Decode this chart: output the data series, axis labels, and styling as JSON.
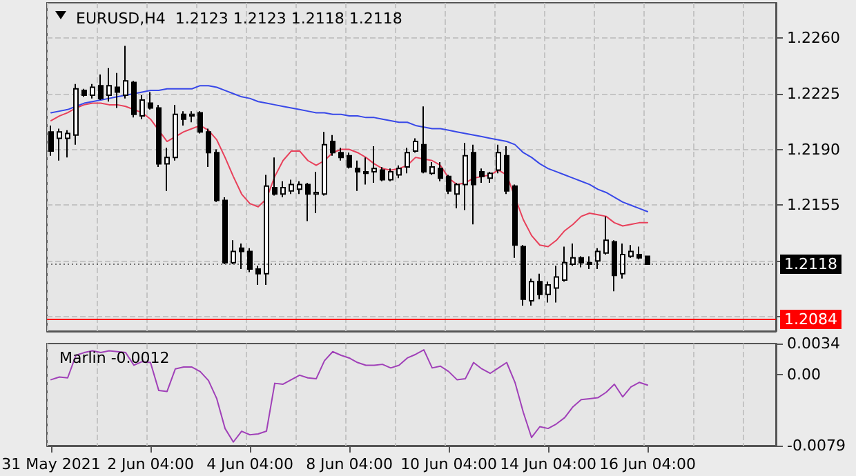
{
  "chart_data": [
    {
      "type": "candlestick",
      "title": "EURUSD,H4  1.2123 1.2123 1.2118 1.2118",
      "tick_labels": "y",
      "grid": true,
      "marker": "none",
      "categories": [
        null,
        null,
        null,
        null,
        null,
        null,
        null,
        null,
        null,
        null,
        null,
        null,
        null,
        null,
        null,
        null,
        null,
        null,
        null,
        null,
        null,
        null,
        null,
        null,
        null,
        null,
        null,
        null,
        null,
        null,
        null,
        null,
        null,
        null,
        null,
        null,
        null,
        null,
        null,
        null,
        null,
        null,
        null,
        null,
        null,
        null,
        null,
        null,
        null,
        null,
        null,
        null,
        null,
        null,
        null,
        null,
        null,
        null,
        null,
        null,
        null,
        null,
        null,
        null,
        null,
        null,
        null,
        null,
        null,
        null,
        null,
        null,
        null,
        null,
        null,
        null,
        null,
        null,
        null,
        null,
        null,
        null,
        null,
        null,
        null,
        null,
        null,
        null
      ],
      "ylim": [
        1.2076,
        1.2282
      ],
      "yticks": [
        {
          "value": 1.2085,
          "label": null
        },
        {
          "value": 1.212,
          "label": null
        },
        {
          "value": 1.2155,
          "label": "1.2155"
        },
        {
          "value": 1.219,
          "label": "1.2190"
        },
        {
          "value": 1.2225,
          "label": "1.2225"
        },
        {
          "value": 1.226,
          "label": "1.2260"
        }
      ],
      "ref_lines": [
        {
          "axis": "y",
          "value": 1.2084,
          "label": "1.2084",
          "color": "#ff0000",
          "line_style": "solid"
        },
        {
          "axis": "y",
          "value": 1.2118,
          "label": "1.2118",
          "color": "#000000",
          "line_style": "dotted"
        }
      ],
      "series": [
        {
          "type": "candlestick",
          "color": "#000000",
          "ohlc": [
            [
              1.2201,
              1.2205,
              1.2186,
              1.2189
            ],
            [
              1.2197,
              1.2203,
              1.2183,
              1.2201
            ],
            [
              1.2197,
              1.2202,
              1.2185,
              1.22
            ],
            [
              1.2199,
              1.2231,
              1.2193,
              1.2228
            ],
            [
              1.2227,
              1.2228,
              1.2223,
              1.2224
            ],
            [
              1.2224,
              1.2231,
              1.2222,
              1.2229
            ],
            [
              1.223,
              1.2237,
              1.2221,
              1.2222
            ],
            [
              1.2224,
              1.2241,
              1.222,
              1.223
            ],
            [
              1.2229,
              1.2238,
              1.2216,
              1.2226
            ],
            [
              1.2224,
              1.2255,
              1.2222,
              1.2233
            ],
            [
              1.2232,
              1.2233,
              1.221,
              1.2212
            ],
            [
              1.2211,
              1.2224,
              1.2209,
              1.2221
            ],
            [
              1.2219,
              1.2226,
              1.2215,
              1.2216
            ],
            [
              1.2216,
              1.2218,
              1.2179,
              1.2181
            ],
            [
              1.2181,
              1.2191,
              1.2164,
              1.2185
            ],
            [
              1.2185,
              1.2218,
              1.2183,
              1.2212
            ],
            [
              1.2212,
              1.2214,
              1.2205,
              1.2209
            ],
            [
              1.2211,
              1.2214,
              1.2207,
              1.2212
            ],
            [
              1.2213,
              1.2214,
              1.22,
              1.2201
            ],
            [
              1.2201,
              1.2203,
              1.2179,
              1.2188
            ],
            [
              1.2188,
              1.219,
              1.2157,
              1.2158
            ],
            [
              1.2158,
              1.216,
              1.2118,
              1.2119
            ],
            [
              1.2119,
              1.2133,
              1.2118,
              1.2126
            ],
            [
              1.2128,
              1.2131,
              1.2115,
              1.2126
            ],
            [
              1.2126,
              1.2128,
              1.2113,
              1.2115
            ],
            [
              1.2115,
              1.2117,
              1.2105,
              1.2112
            ],
            [
              1.2112,
              1.2174,
              1.2105,
              1.2167
            ],
            [
              1.2166,
              1.2185,
              1.2161,
              1.2162
            ],
            [
              1.2162,
              1.217,
              1.216,
              1.2166
            ],
            [
              1.2164,
              1.2171,
              1.2162,
              1.2168
            ],
            [
              1.2165,
              1.217,
              1.2162,
              1.2168
            ],
            [
              1.2168,
              1.2169,
              1.2145,
              1.2162
            ],
            [
              1.2162,
              1.2176,
              1.215,
              1.2163
            ],
            [
              1.2162,
              1.2201,
              1.2161,
              1.2193
            ],
            [
              1.2195,
              1.2199,
              1.2186,
              1.2188
            ],
            [
              1.2188,
              1.2191,
              1.2183,
              1.2185
            ],
            [
              1.2186,
              1.2188,
              1.2178,
              1.2179
            ],
            [
              1.2178,
              1.2183,
              1.2164,
              1.2176
            ],
            [
              1.2176,
              1.2185,
              1.2168,
              1.2175
            ],
            [
              1.2176,
              1.2192,
              1.2169,
              1.2178
            ],
            [
              1.2177,
              1.2179,
              1.217,
              1.2171
            ],
            [
              1.2171,
              1.2178,
              1.217,
              1.2176
            ],
            [
              1.2174,
              1.218,
              1.2172,
              1.2178
            ],
            [
              1.2179,
              1.2191,
              1.2175,
              1.2188
            ],
            [
              1.2189,
              1.2197,
              1.2188,
              1.2195
            ],
            [
              1.2193,
              1.2217,
              1.2175,
              1.2176
            ],
            [
              1.2175,
              1.2182,
              1.2174,
              1.2179
            ],
            [
              1.2178,
              1.2182,
              1.217,
              1.2172
            ],
            [
              1.2173,
              1.2174,
              1.2162,
              1.2164
            ],
            [
              1.2162,
              1.2169,
              1.2153,
              1.2168
            ],
            [
              1.2168,
              1.2194,
              1.2152,
              1.2186
            ],
            [
              1.2188,
              1.2193,
              1.2143,
              1.2168
            ],
            [
              1.2176,
              1.2178,
              1.2169,
              1.2173
            ],
            [
              1.2172,
              1.2176,
              1.2169,
              1.2175
            ],
            [
              1.2177,
              1.2193,
              1.2175,
              1.2188
            ],
            [
              1.2186,
              1.2192,
              1.2162,
              1.2164
            ],
            [
              1.2167,
              1.2168,
              1.2122,
              1.213
            ],
            [
              1.2129,
              1.213,
              1.2092,
              1.2096
            ],
            [
              1.2095,
              1.2109,
              1.2092,
              1.2107
            ],
            [
              1.2107,
              1.2112,
              1.2096,
              1.2099
            ],
            [
              1.2099,
              1.2107,
              1.2094,
              1.2105
            ],
            [
              1.2103,
              1.2117,
              1.2094,
              1.211
            ],
            [
              1.2108,
              1.2129,
              1.2107,
              1.2119
            ],
            [
              1.2118,
              1.2131,
              1.2117,
              1.2122
            ],
            [
              1.2122,
              1.2123,
              1.2116,
              1.2119
            ],
            [
              1.2119,
              1.2123,
              1.2115,
              1.2118
            ],
            [
              1.212,
              1.2128,
              1.2115,
              1.2126
            ],
            [
              1.2125,
              1.2148,
              1.2124,
              1.2133
            ],
            [
              1.2132,
              1.2133,
              1.2101,
              1.2111
            ],
            [
              1.2112,
              1.2131,
              1.2109,
              1.2124
            ],
            [
              1.2123,
              1.213,
              1.2122,
              1.2126
            ],
            [
              1.2124,
              1.2129,
              1.2121,
              1.2122
            ],
            [
              1.2123,
              1.2123,
              1.2118,
              1.2118
            ],
            null,
            null,
            null,
            null,
            null,
            null,
            null,
            null,
            null,
            null,
            null,
            null,
            null,
            null,
            null
          ]
        },
        {
          "type": "line",
          "color": "#e8405a",
          "values": [
            1.2208,
            1.2211,
            1.2213,
            1.2216,
            1.2218,
            1.2219,
            1.2219,
            1.2218,
            1.2218,
            1.2217,
            1.2215,
            1.2213,
            1.2209,
            1.2202,
            1.2195,
            1.2198,
            1.2201,
            1.2203,
            1.2205,
            1.2202,
            1.2196,
            1.2185,
            1.2173,
            1.2162,
            1.2156,
            1.2154,
            1.2159,
            1.2173,
            1.2183,
            1.2189,
            1.2189,
            1.2183,
            1.218,
            1.2183,
            1.2188,
            1.219,
            1.219,
            1.2188,
            1.2185,
            1.2181,
            1.2178,
            1.2177,
            1.2178,
            1.218,
            1.2185,
            1.2184,
            1.2183,
            1.218,
            1.2172,
            1.2168,
            1.2169,
            1.2172,
            1.2173,
            1.2174,
            1.2177,
            1.2174,
            null,
            1.2146,
            1.2136,
            1.213,
            1.2129,
            1.2133,
            1.2139,
            1.2143,
            1.2148,
            1.215,
            1.2149,
            1.2148,
            1.2144,
            1.2142,
            1.2143,
            1.2144,
            1.2144,
            null,
            null,
            null,
            null,
            null,
            null,
            null,
            null,
            null,
            null,
            null,
            null,
            null,
            null,
            null
          ]
        },
        {
          "type": "line",
          "color": "#3848e8",
          "values": [
            1.2213,
            1.2214,
            1.2215,
            1.2217,
            1.2219,
            1.222,
            1.2221,
            1.2222,
            1.2223,
            1.2224,
            1.2225,
            1.2226,
            1.2227,
            1.2227,
            1.2228,
            1.2228,
            1.2228,
            1.2228,
            1.223,
            1.223,
            1.2229,
            1.2227,
            1.2225,
            1.2223,
            1.2222,
            1.222,
            1.2219,
            1.2218,
            1.2217,
            1.2216,
            1.2215,
            1.2214,
            1.2213,
            1.2213,
            1.2212,
            1.2212,
            1.2211,
            1.2211,
            1.221,
            1.221,
            1.2209,
            1.2208,
            1.2207,
            1.2207,
            1.2205,
            1.2204,
            1.2203,
            1.2203,
            1.2202,
            1.2201,
            1.22,
            1.2199,
            1.2198,
            1.2197,
            1.2196,
            1.2195,
            1.2193,
            1.2188,
            1.2185,
            1.2181,
            1.2178,
            1.2176,
            1.2174,
            1.2172,
            1.217,
            1.2168,
            1.2165,
            1.2163,
            1.216,
            1.2157,
            1.2155,
            1.2153,
            1.2151,
            null,
            null,
            null,
            null,
            null,
            null,
            null,
            null,
            null,
            null,
            null,
            null,
            null,
            null,
            null
          ]
        }
      ]
    },
    {
      "type": "line",
      "title": "Marlin -0.0012",
      "grid": "x",
      "marker": "none",
      "categories": [
        "31 May 2021",
        null,
        null,
        null,
        null,
        null,
        null,
        null,
        null,
        null,
        null,
        null,
        "2 Jun 04:00",
        null,
        null,
        null,
        null,
        null,
        null,
        null,
        null,
        null,
        null,
        null,
        "4 Jun 04:00",
        null,
        null,
        null,
        null,
        null,
        null,
        null,
        null,
        null,
        null,
        null,
        "8 Jun 04:00",
        null,
        null,
        null,
        null,
        null,
        null,
        null,
        null,
        null,
        null,
        null,
        "10 Jun 04:00",
        null,
        null,
        null,
        null,
        null,
        null,
        null,
        null,
        null,
        null,
        null,
        "14 Jun 04:00",
        null,
        null,
        null,
        null,
        null,
        null,
        null,
        null,
        null,
        null,
        null,
        "16 Jun 04:00",
        null,
        null,
        null,
        null,
        null,
        null,
        null,
        null,
        null,
        null,
        null,
        null,
        null,
        null,
        null
      ],
      "ylim": [
        -0.0079,
        0.0034
      ],
      "yticks": [
        -0.0079,
        {
          "value": 0,
          "label": "0.00"
        },
        0.0034
      ],
      "series": [
        {
          "color": "#a040b8",
          "values": [
            -0.0006,
            -0.0003,
            -0.0004,
            0.0021,
            0.0024,
            0.0026,
            0.0024,
            0.0026,
            0.0025,
            0.0024,
            0.001,
            0.0014,
            0.0013,
            -0.0018,
            -0.0019,
            0.0006,
            0.0008,
            0.0008,
            0.0003,
            -0.0007,
            -0.0027,
            -0.006,
            -0.0075,
            -0.0063,
            -0.0067,
            -0.0066,
            -0.0063,
            -0.001,
            -0.0011,
            -0.0006,
            -0.0001,
            -0.0004,
            -0.0005,
            0.0015,
            0.0025,
            0.0021,
            0.0018,
            0.0013,
            0.001,
            0.001,
            0.0011,
            0.0007,
            0.001,
            0.0018,
            0.0022,
            0.0027,
            0.0007,
            0.0009,
            0.0003,
            -0.0006,
            -0.0005,
            0.0013,
            0.0006,
            0.0001,
            0.0007,
            0.0013,
            -0.0009,
            -0.0042,
            -0.007,
            -0.0058,
            -0.006,
            -0.0055,
            -0.0048,
            -0.0036,
            -0.0028,
            -0.0027,
            -0.0026,
            -0.002,
            -0.0011,
            -0.0025,
            -0.0014,
            -0.0009,
            -0.0012,
            null,
            null,
            null,
            null,
            null,
            null,
            null,
            null,
            null,
            null,
            null,
            null,
            null,
            null,
            null
          ]
        }
      ]
    }
  ]
}
